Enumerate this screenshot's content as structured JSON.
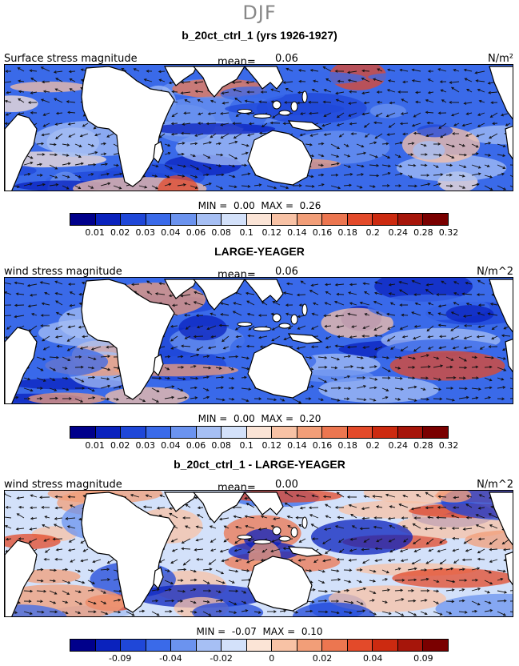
{
  "season": "DJF",
  "palette": [
    "#00008b",
    "#0a22bd",
    "#1f47d8",
    "#3a6ae9",
    "#6b93ef",
    "#a6bff4",
    "#d3e1fa",
    "#fbe4d6",
    "#f8c2a5",
    "#f29e78",
    "#ec7650",
    "#e34a2a",
    "#cc2a10",
    "#a6150a",
    "#7a0000"
  ],
  "panels": [
    {
      "title": "b_20ct_ctrl_1 (yrs 1926-1927)",
      "var_label": "Surface stress magnitude",
      "mean_label": "mean=",
      "mean_value": "0.06",
      "units": "N/m²",
      "min_label": "MIN =",
      "min_value": "0.00",
      "max_label": "MAX =",
      "max_value": "0.26",
      "field_level": 0.45,
      "ticks": [
        "0.01",
        "0.02",
        "0.03",
        "0.04",
        "0.06",
        "0.08",
        "0.1",
        "0.12",
        "0.14",
        "0.16",
        "0.18",
        "0.2",
        "0.24",
        "0.28",
        "0.32"
      ]
    },
    {
      "title": "LARGE-YEAGER",
      "var_label": "wind stress magnitude",
      "mean_label": "mean=",
      "mean_value": "0.06",
      "units": "N/m^2",
      "min_label": "MIN =",
      "min_value": "0.00",
      "max_label": "MAX =",
      "max_value": "0.20",
      "field_level": 0.4,
      "ticks": [
        "0.01",
        "0.02",
        "0.03",
        "0.04",
        "0.06",
        "0.08",
        "0.1",
        "0.12",
        "0.14",
        "0.16",
        "0.18",
        "0.2",
        "0.24",
        "0.28",
        "0.32"
      ]
    },
    {
      "title": "b_20ct_ctrl_1 - LARGE-YEAGER",
      "var_label": "wind stress magnitude",
      "mean_label": "mean=",
      "mean_value": "0.00",
      "units": "N/m^2",
      "min_label": "MIN =",
      "min_value": "-0.07",
      "max_label": "MAX =",
      "max_value": "0.10",
      "field_level": 0.55,
      "ticks": [
        "",
        "-0.09",
        "",
        "-0.04",
        "",
        "-0.02",
        "",
        "0",
        "",
        "0.02",
        "",
        "0.04",
        "",
        "0.09",
        ""
      ]
    }
  ]
}
